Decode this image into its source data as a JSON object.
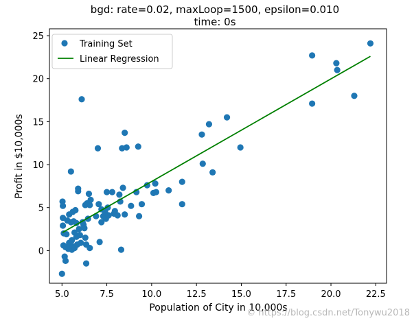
{
  "chart_data": {
    "type": "scatter",
    "title": "bgd: rate=0.02, maxLoop=1500, epsilon=0.010",
    "subtitle": "time: 0s",
    "xlabel": "Population of City in 10,000s",
    "ylabel": "Profit in $10,000s",
    "xlim": [
      4.3,
      23.1
    ],
    "ylim": [
      -3.8,
      25.8
    ],
    "xticks": [
      5.0,
      7.5,
      10.0,
      12.5,
      15.0,
      17.5,
      20.0,
      22.5
    ],
    "xtick_labels": [
      "5.0",
      "7.5",
      "10.0",
      "12.5",
      "15.0",
      "17.5",
      "20.0",
      "22.5"
    ],
    "yticks": [
      0,
      5,
      10,
      15,
      20,
      25
    ],
    "ytick_labels": [
      "0",
      "5",
      "10",
      "15",
      "20",
      "25"
    ],
    "grid": false,
    "legend": {
      "position": "top-left",
      "entries": [
        "Training Set",
        "Linear Regression"
      ]
    },
    "series": [
      {
        "name": "Training Set",
        "kind": "scatter",
        "color": "#1f77b4",
        "points": [
          [
            5.03,
            5.7
          ],
          [
            5.05,
            5.2
          ],
          [
            5.05,
            3.8
          ],
          [
            5.05,
            2.9
          ],
          [
            5.1,
            2.0
          ],
          [
            5.08,
            0.6
          ],
          [
            5.15,
            -0.7
          ],
          [
            5.2,
            -1.2
          ],
          [
            5.0,
            -2.7
          ],
          [
            5.2,
            0.4
          ],
          [
            5.25,
            1.9
          ],
          [
            5.3,
            3.5
          ],
          [
            5.35,
            0.2
          ],
          [
            5.4,
            4.2
          ],
          [
            5.4,
            0.9
          ],
          [
            5.45,
            0.6
          ],
          [
            5.5,
            9.2
          ],
          [
            5.5,
            3.3
          ],
          [
            5.55,
            0.1
          ],
          [
            5.55,
            1.2
          ],
          [
            5.6,
            4.5
          ],
          [
            5.6,
            0.5
          ],
          [
            5.65,
            3.4
          ],
          [
            5.7,
            2.1
          ],
          [
            5.7,
            0.3
          ],
          [
            5.75,
            4.7
          ],
          [
            5.8,
            3.2
          ],
          [
            5.8,
            1.6
          ],
          [
            5.85,
            0.7
          ],
          [
            5.9,
            7.2
          ],
          [
            5.9,
            6.9
          ],
          [
            5.95,
            2.5
          ],
          [
            6.0,
            1.8
          ],
          [
            6.05,
            0.9
          ],
          [
            6.1,
            17.6
          ],
          [
            6.15,
            3.3
          ],
          [
            6.2,
            3.0
          ],
          [
            6.25,
            2.6
          ],
          [
            6.3,
            5.3
          ],
          [
            6.3,
            1.5
          ],
          [
            6.35,
            0.7
          ],
          [
            6.35,
            -1.5
          ],
          [
            6.4,
            5.5
          ],
          [
            6.45,
            3.7
          ],
          [
            6.5,
            6.6
          ],
          [
            6.55,
            5.3
          ],
          [
            6.55,
            0.3
          ],
          [
            6.6,
            5.9
          ],
          [
            6.9,
            4.0
          ],
          [
            7.0,
            11.9
          ],
          [
            7.05,
            5.4
          ],
          [
            7.1,
            1.0
          ],
          [
            7.2,
            4.8
          ],
          [
            7.2,
            3.3
          ],
          [
            7.3,
            4.0
          ],
          [
            7.4,
            4.5
          ],
          [
            7.45,
            3.7
          ],
          [
            7.5,
            6.8
          ],
          [
            7.55,
            5.0
          ],
          [
            7.6,
            4.1
          ],
          [
            7.8,
            6.8
          ],
          [
            7.9,
            4.3
          ],
          [
            7.95,
            4.6
          ],
          [
            8.1,
            4.1
          ],
          [
            8.2,
            6.5
          ],
          [
            8.25,
            5.7
          ],
          [
            8.3,
            0.1
          ],
          [
            8.35,
            11.9
          ],
          [
            8.4,
            7.3
          ],
          [
            8.5,
            13.7
          ],
          [
            8.5,
            4.2
          ],
          [
            8.6,
            12.0
          ],
          [
            8.85,
            5.2
          ],
          [
            9.15,
            6.8
          ],
          [
            9.25,
            12.1
          ],
          [
            9.3,
            4.0
          ],
          [
            9.45,
            5.4
          ],
          [
            9.75,
            7.6
          ],
          [
            10.1,
            6.7
          ],
          [
            10.2,
            7.8
          ],
          [
            10.25,
            6.8
          ],
          [
            10.95,
            7.0
          ],
          [
            11.7,
            8.0
          ],
          [
            11.7,
            5.4
          ],
          [
            12.8,
            13.5
          ],
          [
            12.85,
            10.1
          ],
          [
            13.2,
            14.7
          ],
          [
            13.4,
            9.1
          ],
          [
            14.2,
            15.5
          ],
          [
            14.95,
            12.0
          ],
          [
            18.95,
            22.7
          ],
          [
            18.95,
            17.1
          ],
          [
            20.3,
            21.8
          ],
          [
            20.35,
            21.0
          ],
          [
            21.3,
            18.0
          ],
          [
            22.2,
            24.1
          ]
        ]
      },
      {
        "name": "Linear Regression",
        "kind": "line",
        "color": "#008000",
        "x": [
          5.03,
          22.2
        ],
        "y": [
          2.1,
          22.6
        ]
      }
    ]
  }
}
